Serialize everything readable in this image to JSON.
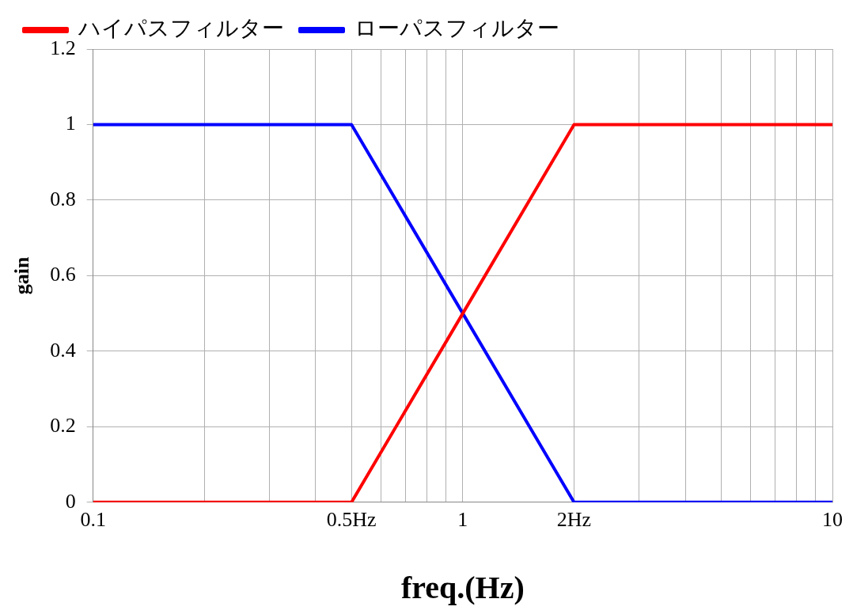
{
  "chart_data": {
    "type": "line",
    "xlabel": "freq.(Hz)",
    "ylabel": "gain",
    "log": "x",
    "series": [
      {
        "name": "ハイパスフィルター",
        "color": "#ff0000",
        "x": [
          0.1,
          0.5,
          1,
          2,
          10
        ],
        "values": [
          0,
          0,
          0.5,
          1,
          1
        ]
      },
      {
        "name": "ローパスフィルター",
        "color": "#0000ff",
        "x": [
          0.1,
          0.5,
          1,
          2,
          10
        ],
        "values": [
          1,
          1,
          0.5,
          0,
          0
        ]
      }
    ],
    "xlim": [
      0.1,
      10
    ],
    "ylim": [
      0,
      1.2
    ],
    "xticks": [
      0.1,
      {
        "value": 0.2,
        "label": null
      },
      {
        "value": 0.3,
        "label": null
      },
      {
        "value": 0.4,
        "label": null
      },
      {
        "value": 0.5,
        "label": "0.5Hz"
      },
      {
        "value": 0.6,
        "label": null
      },
      {
        "value": 0.7,
        "label": null
      },
      {
        "value": 0.8,
        "label": null
      },
      {
        "value": 0.9,
        "label": null
      },
      1,
      {
        "value": 2,
        "label": "2Hz"
      },
      {
        "value": 3,
        "label": null
      },
      {
        "value": 4,
        "label": null
      },
      {
        "value": 5,
        "label": null
      },
      {
        "value": 6,
        "label": null
      },
      {
        "value": 7,
        "label": null
      },
      {
        "value": 8,
        "label": null
      },
      {
        "value": 9,
        "label": null
      },
      10
    ],
    "yticks": [
      0,
      0.2,
      0.4,
      0.6,
      0.8,
      1,
      1.2
    ],
    "grid": true,
    "legend": "top",
    "marker": "none",
    "line_style": "solid"
  }
}
